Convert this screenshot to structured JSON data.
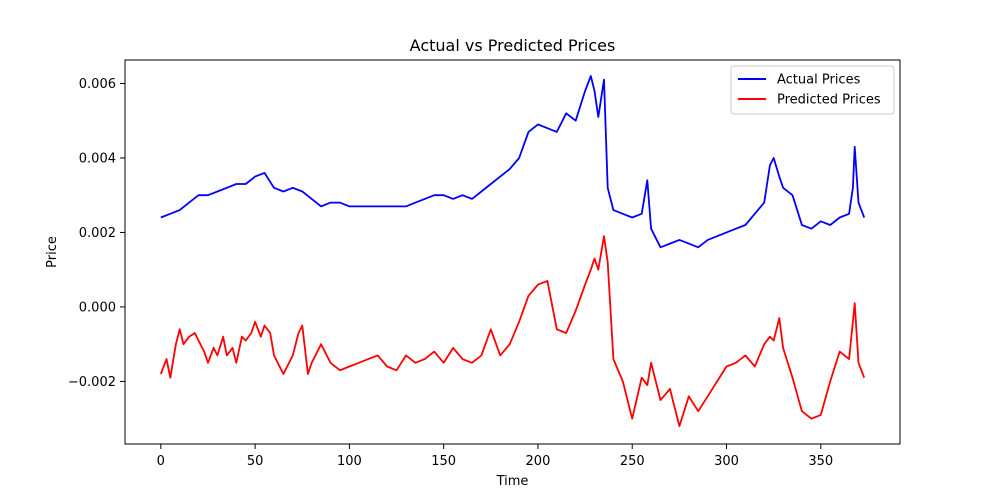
{
  "chart_data": {
    "type": "line",
    "title": "Actual vs Predicted Prices",
    "xlabel": "Time",
    "ylabel": "Price",
    "xlim": [
      -19,
      392
    ],
    "ylim": [
      -0.00368,
      0.00663
    ],
    "xticks": [
      0,
      50,
      100,
      150,
      200,
      250,
      300,
      350
    ],
    "xtick_labels": [
      "0",
      "50",
      "100",
      "150",
      "200",
      "250",
      "300",
      "350"
    ],
    "yticks": [
      -0.002,
      0.0,
      0.002,
      0.004,
      0.006
    ],
    "ytick_labels": [
      "−0.002",
      "0.000",
      "0.002",
      "0.004",
      "0.006"
    ],
    "grid": false,
    "legend_position": "top-right",
    "series": [
      {
        "name": "Actual Prices",
        "color": "#0000ff",
        "x": [
          0,
          5,
          10,
          15,
          20,
          25,
          30,
          35,
          40,
          45,
          50,
          55,
          60,
          65,
          70,
          75,
          80,
          85,
          90,
          95,
          100,
          105,
          110,
          115,
          120,
          125,
          130,
          135,
          140,
          145,
          150,
          155,
          160,
          165,
          170,
          175,
          180,
          185,
          190,
          195,
          200,
          205,
          210,
          215,
          220,
          225,
          228,
          230,
          232,
          235,
          237,
          240,
          245,
          250,
          255,
          258,
          260,
          265,
          270,
          275,
          280,
          285,
          290,
          295,
          300,
          305,
          310,
          315,
          320,
          323,
          325,
          328,
          330,
          335,
          340,
          345,
          350,
          355,
          360,
          365,
          367,
          368,
          370,
          373
        ],
        "y": [
          0.0024,
          0.0025,
          0.0026,
          0.0028,
          0.003,
          0.003,
          0.0031,
          0.0032,
          0.0033,
          0.0033,
          0.0035,
          0.0036,
          0.0032,
          0.0031,
          0.0032,
          0.0031,
          0.0029,
          0.0027,
          0.0028,
          0.0028,
          0.0027,
          0.0027,
          0.0027,
          0.0027,
          0.0027,
          0.0027,
          0.0027,
          0.0028,
          0.0029,
          0.003,
          0.003,
          0.0029,
          0.003,
          0.0029,
          0.0031,
          0.0033,
          0.0035,
          0.0037,
          0.004,
          0.0047,
          0.0049,
          0.0048,
          0.0047,
          0.0052,
          0.005,
          0.0058,
          0.0062,
          0.0058,
          0.0051,
          0.0061,
          0.0032,
          0.0026,
          0.0025,
          0.0024,
          0.0025,
          0.0034,
          0.0021,
          0.0016,
          0.0017,
          0.0018,
          0.0017,
          0.0016,
          0.0018,
          0.0019,
          0.002,
          0.0021,
          0.0022,
          0.0025,
          0.0028,
          0.0038,
          0.004,
          0.0035,
          0.0032,
          0.003,
          0.0022,
          0.0021,
          0.0023,
          0.0022,
          0.0024,
          0.0025,
          0.0032,
          0.0043,
          0.0028,
          0.0024
        ]
      },
      {
        "name": "Predicted Prices",
        "color": "#ff0000",
        "x": [
          0,
          3,
          5,
          8,
          10,
          12,
          15,
          18,
          20,
          23,
          25,
          28,
          30,
          33,
          35,
          38,
          40,
          43,
          45,
          48,
          50,
          53,
          55,
          58,
          60,
          63,
          65,
          70,
          73,
          75,
          78,
          80,
          85,
          90,
          95,
          100,
          105,
          110,
          115,
          120,
          125,
          130,
          135,
          140,
          145,
          150,
          155,
          160,
          165,
          170,
          175,
          180,
          185,
          190,
          195,
          200,
          205,
          210,
          215,
          220,
          225,
          228,
          230,
          232,
          235,
          237,
          240,
          245,
          250,
          255,
          258,
          260,
          265,
          270,
          272,
          275,
          280,
          285,
          290,
          295,
          300,
          305,
          310,
          315,
          320,
          323,
          325,
          328,
          330,
          335,
          340,
          345,
          350,
          355,
          360,
          365,
          368,
          370,
          373
        ],
        "y": [
          -0.0018,
          -0.0014,
          -0.0019,
          -0.001,
          -0.0006,
          -0.001,
          -0.0008,
          -0.0007,
          -0.0009,
          -0.0012,
          -0.0015,
          -0.0011,
          -0.0013,
          -0.0008,
          -0.0013,
          -0.0011,
          -0.0015,
          -0.0008,
          -0.0009,
          -0.0007,
          -0.0004,
          -0.0008,
          -0.0005,
          -0.0007,
          -0.0013,
          -0.0016,
          -0.0018,
          -0.0013,
          -0.0007,
          -0.0005,
          -0.0018,
          -0.0015,
          -0.001,
          -0.0015,
          -0.0017,
          -0.0016,
          -0.0015,
          -0.0014,
          -0.0013,
          -0.0016,
          -0.0017,
          -0.0013,
          -0.0015,
          -0.0014,
          -0.0012,
          -0.0015,
          -0.0011,
          -0.0014,
          -0.0015,
          -0.0013,
          -0.0006,
          -0.0013,
          -0.001,
          -0.0004,
          0.0003,
          0.0006,
          0.0007,
          -0.0006,
          -0.0007,
          -0.0001,
          0.0006,
          0.001,
          0.0013,
          0.001,
          0.0019,
          0.0012,
          -0.0014,
          -0.002,
          -0.003,
          -0.0019,
          -0.0021,
          -0.0015,
          -0.0025,
          -0.0022,
          -0.0026,
          -0.0032,
          -0.0024,
          -0.0028,
          -0.0024,
          -0.002,
          -0.0016,
          -0.0015,
          -0.0013,
          -0.0016,
          -0.001,
          -0.0008,
          -0.0009,
          -0.0003,
          -0.0011,
          -0.0019,
          -0.0028,
          -0.003,
          -0.0029,
          -0.002,
          -0.0012,
          -0.0014,
          0.0001,
          -0.0015,
          -0.0019
        ]
      }
    ]
  }
}
